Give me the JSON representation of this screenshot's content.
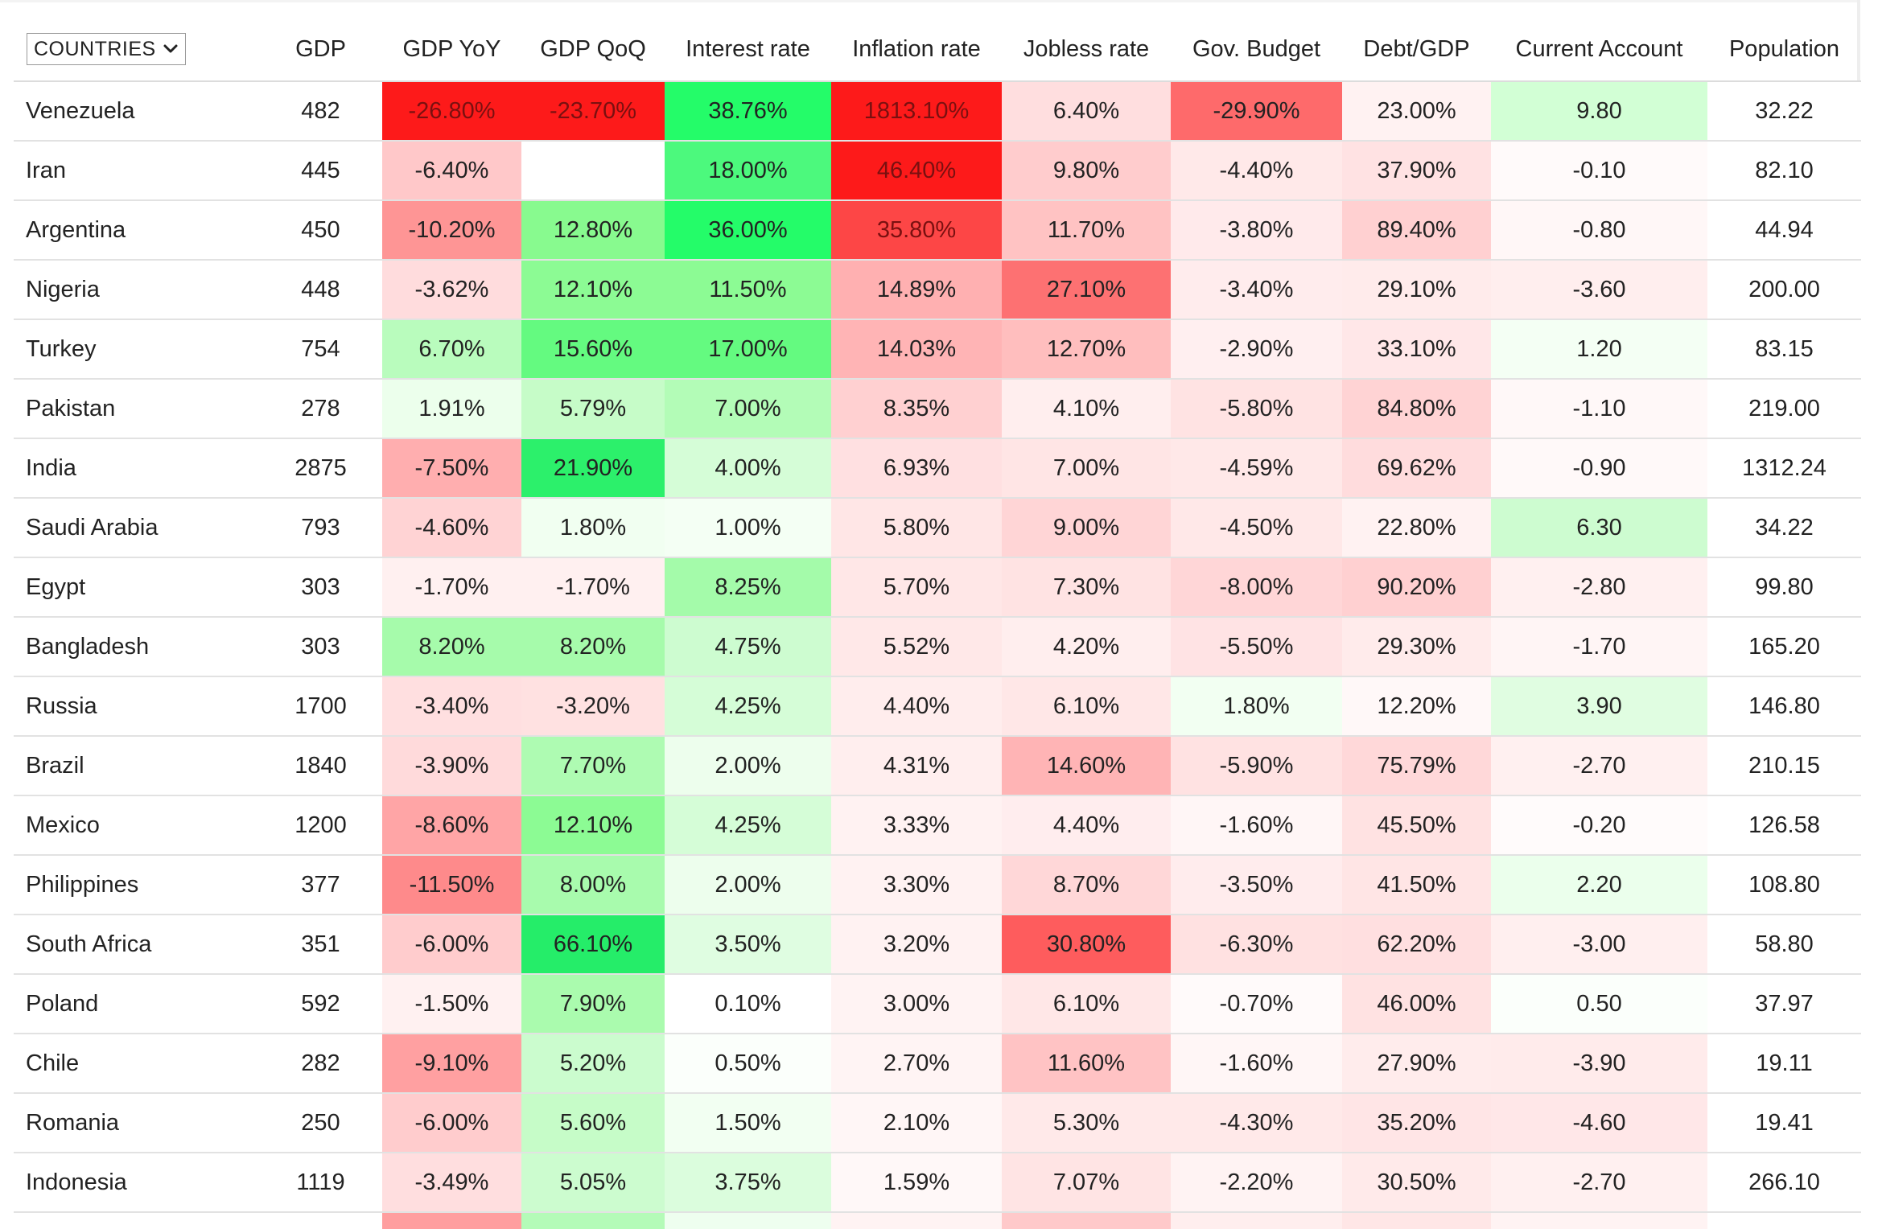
{
  "header": {
    "countries_select": "COUNTRIES",
    "columns": [
      "GDP",
      "GDP YoY",
      "GDP QoQ",
      "Interest rate",
      "Inflation rate",
      "Jobless rate",
      "Gov. Budget",
      "Debt/GDP",
      "Current Account",
      "Population"
    ]
  },
  "rows": [
    {
      "country": "Venezuela",
      "cells": [
        "482",
        "-26.80%",
        "-23.70%",
        "38.76%",
        "1813.10%",
        "6.40%",
        "-29.90%",
        "23.00%",
        "9.80",
        "32.22"
      ],
      "colors": [
        "#ffffff",
        "#fd1a1a",
        "#fd1a1a",
        "#24fc69",
        "#fd1a1a",
        "#ffdedf",
        "#fe6a6b",
        "#fff2f2",
        "#d2ffd5",
        "#ffffff"
      ]
    },
    {
      "country": "Iran",
      "cells": [
        "445",
        "-6.40%",
        "",
        "18.00%",
        "46.40%",
        "9.80%",
        "-4.40%",
        "37.90%",
        "-0.10",
        "82.10"
      ],
      "colors": [
        "#ffffff",
        "#ffc8c9",
        "#ffffff",
        "#4cf97d",
        "#fd1a1a",
        "#ffcccd",
        "#ffe9e9",
        "#ffe2e3",
        "#fffafa",
        "#ffffff"
      ]
    },
    {
      "country": "Argentina",
      "cells": [
        "450",
        "-10.20%",
        "12.80%",
        "36.00%",
        "35.80%",
        "11.70%",
        "-3.80%",
        "89.40%",
        "-0.80",
        "44.94"
      ],
      "colors": [
        "#ffffff",
        "#fe9595",
        "#88fa8f",
        "#24fc69",
        "#fd4646",
        "#ffc3c3",
        "#ffeaeb",
        "#ffd0d1",
        "#fff7f7",
        "#ffffff"
      ]
    },
    {
      "country": "Nigeria",
      "cells": [
        "448",
        "-3.62%",
        "12.10%",
        "11.50%",
        "14.89%",
        "27.10%",
        "-3.40%",
        "29.10%",
        "-3.60",
        "200.00"
      ],
      "colors": [
        "#ffffff",
        "#ffdcdd",
        "#8cfb94",
        "#8cfb94",
        "#ffb0b1",
        "#fd7172",
        "#ffeced",
        "#ffebeb",
        "#ffeeee",
        "#ffffff"
      ]
    },
    {
      "country": "Turkey",
      "cells": [
        "754",
        "6.70%",
        "15.60%",
        "17.00%",
        "14.03%",
        "12.70%",
        "-2.90%",
        "33.10%",
        "1.20",
        "83.15"
      ],
      "colors": [
        "#ffffff",
        "#b9fcbd",
        "#64fa80",
        "#64fa80",
        "#ffb4b5",
        "#ffbebe",
        "#ffeff0",
        "#ffe7e8",
        "#f4fff4",
        "#ffffff"
      ]
    },
    {
      "country": "Pakistan",
      "cells": [
        "278",
        "1.91%",
        "5.79%",
        "7.00%",
        "8.35%",
        "4.10%",
        "-5.80%",
        "84.80%",
        "-1.10",
        "219.00"
      ],
      "colors": [
        "#ffffff",
        "#ecffec",
        "#c6fcc8",
        "#b3fcb7",
        "#ffd0d1",
        "#ffeeee",
        "#ffe3e3",
        "#ffd3d4",
        "#fff8f8",
        "#ffffff"
      ]
    },
    {
      "country": "India",
      "cells": [
        "2875",
        "-7.50%",
        "21.90%",
        "4.00%",
        "6.93%",
        "7.00%",
        "-4.59%",
        "69.62%",
        "-0.90",
        "1312.24"
      ],
      "colors": [
        "#ffffff",
        "#ffaeaf",
        "#2cf06b",
        "#d5fdd7",
        "#ffe0e1",
        "#ffe5e5",
        "#ffe8e8",
        "#ffdcdd",
        "#fff9f9",
        "#ffffff"
      ]
    },
    {
      "country": "Saudi Arabia",
      "cells": [
        "793",
        "-4.60%",
        "1.80%",
        "1.00%",
        "5.80%",
        "9.00%",
        "-4.50%",
        "22.80%",
        "6.30",
        "34.22"
      ],
      "colors": [
        "#ffffff",
        "#ffd3d4",
        "#f1fff1",
        "#f4fff4",
        "#ffe6e6",
        "#ffd5d6",
        "#ffe8e8",
        "#fff2f2",
        "#cdfcd0",
        "#ffffff"
      ]
    },
    {
      "country": "Egypt",
      "cells": [
        "303",
        "-1.70%",
        "-1.70%",
        "8.25%",
        "5.70%",
        "7.30%",
        "-8.00%",
        "90.20%",
        "-2.80",
        "99.80"
      ],
      "colors": [
        "#ffffff",
        "#fff0f0",
        "#fff0f0",
        "#a4fbaa",
        "#ffe7e7",
        "#ffe3e3",
        "#ffd6d7",
        "#ffd0d1",
        "#fff0f0",
        "#ffffff"
      ]
    },
    {
      "country": "Bangladesh",
      "cells": [
        "303",
        "8.20%",
        "8.20%",
        "4.75%",
        "5.52%",
        "4.20%",
        "-5.50%",
        "29.30%",
        "-1.70",
        "165.20"
      ],
      "colors": [
        "#ffffff",
        "#a6fbab",
        "#a6fbab",
        "#cdfcd0",
        "#ffe8e8",
        "#ffeeee",
        "#ffe3e4",
        "#ffebeb",
        "#fff5f5",
        "#ffffff"
      ]
    },
    {
      "country": "Russia",
      "cells": [
        "1700",
        "-3.40%",
        "-3.20%",
        "4.25%",
        "4.40%",
        "6.10%",
        "1.80%",
        "12.20%",
        "3.90",
        "146.80"
      ],
      "colors": [
        "#ffffff",
        "#ffdfe0",
        "#ffe1e1",
        "#d5fdd7",
        "#ffeded",
        "#ffe7e7",
        "#f2fff2",
        "#fff8f8",
        "#e0fde1",
        "#ffffff"
      ]
    },
    {
      "country": "Brazil",
      "cells": [
        "1840",
        "-3.90%",
        "7.70%",
        "2.00%",
        "4.31%",
        "14.60%",
        "-5.90%",
        "75.79%",
        "-2.70",
        "210.15"
      ],
      "colors": [
        "#ffffff",
        "#ffdadb",
        "#aefbb2",
        "#edfeed",
        "#ffeeee",
        "#ffb4b5",
        "#ffe2e2",
        "#ffd8d9",
        "#fff0f0",
        "#ffffff"
      ]
    },
    {
      "country": "Mexico",
      "cells": [
        "1200",
        "-8.60%",
        "12.10%",
        "4.25%",
        "3.33%",
        "4.40%",
        "-1.60%",
        "45.50%",
        "-0.20",
        "126.58"
      ],
      "colors": [
        "#ffffff",
        "#ffa5a6",
        "#8cfb94",
        "#d5fdd7",
        "#fff2f2",
        "#ffedee",
        "#fff6f6",
        "#ffe2e2",
        "#fffbfb",
        "#ffffff"
      ]
    },
    {
      "country": "Philippines",
      "cells": [
        "377",
        "-11.50%",
        "8.00%",
        "2.00%",
        "3.30%",
        "8.70%",
        "-3.50%",
        "41.50%",
        "2.20",
        "108.80"
      ],
      "colors": [
        "#ffffff",
        "#fe8a8b",
        "#a8fbad",
        "#edfeed",
        "#fff2f2",
        "#ffd7d8",
        "#ffeced",
        "#ffe5e5",
        "#ebffec",
        "#ffffff"
      ]
    },
    {
      "country": "South Africa",
      "cells": [
        "351",
        "-6.00%",
        "66.10%",
        "3.50%",
        "3.20%",
        "30.80%",
        "-6.30%",
        "62.20%",
        "-3.00",
        "58.80"
      ],
      "colors": [
        "#ffffff",
        "#ffcccd",
        "#25ed69",
        "#dffde1",
        "#fff2f2",
        "#fe5c5d",
        "#ffe1e1",
        "#ffdfe0",
        "#ffefef",
        "#ffffff"
      ]
    },
    {
      "country": "Poland",
      "cells": [
        "592",
        "-1.50%",
        "7.90%",
        "0.10%",
        "3.00%",
        "6.10%",
        "-0.70%",
        "46.00%",
        "0.50",
        "37.97"
      ],
      "colors": [
        "#ffffff",
        "#fff1f1",
        "#aafbae",
        "#ffffff",
        "#fff3f3",
        "#ffe7e7",
        "#fffafa",
        "#ffe2e2",
        "#fbfffb",
        "#ffffff"
      ]
    },
    {
      "country": "Chile",
      "cells": [
        "282",
        "-9.10%",
        "5.20%",
        "0.50%",
        "2.70%",
        "11.60%",
        "-1.60%",
        "27.90%",
        "-3.90",
        "19.11"
      ],
      "colors": [
        "#ffffff",
        "#ffa0a1",
        "#cbfcce",
        "#fbfffb",
        "#fff4f4",
        "#ffc3c4",
        "#fff6f6",
        "#ffecec",
        "#ffebeb",
        "#ffffff"
      ]
    },
    {
      "country": "Romania",
      "cells": [
        "250",
        "-6.00%",
        "5.60%",
        "1.50%",
        "2.10%",
        "5.30%",
        "-4.30%",
        "35.20%",
        "-4.60",
        "19.41"
      ],
      "colors": [
        "#ffffff",
        "#ffcccd",
        "#c6fcc8",
        "#f2fff2",
        "#fff6f6",
        "#ffe9e9",
        "#ffe9e9",
        "#ffe5e6",
        "#ffe7e8",
        "#ffffff"
      ]
    },
    {
      "country": "Indonesia",
      "cells": [
        "1119",
        "-3.49%",
        "5.05%",
        "3.75%",
        "1.59%",
        "7.07%",
        "-2.20%",
        "30.50%",
        "-2.70",
        "266.10"
      ],
      "colors": [
        "#ffffff",
        "#ffdedf",
        "#ccfccf",
        "#dbfddd",
        "#fff8f8",
        "#ffe4e4",
        "#fff3f3",
        "#ffeaea",
        "#fff0f0",
        "#ffffff"
      ]
    }
  ],
  "partial_row_colors": [
    "#ffffff",
    "#ffffff",
    "#ff9e9f",
    "#b4fbb8",
    "#eefeef",
    "#fff3f3",
    "#ffc9ca",
    "#ffeeee",
    "#ffe6e6",
    "#fff3f3",
    "#ffffff"
  ]
}
